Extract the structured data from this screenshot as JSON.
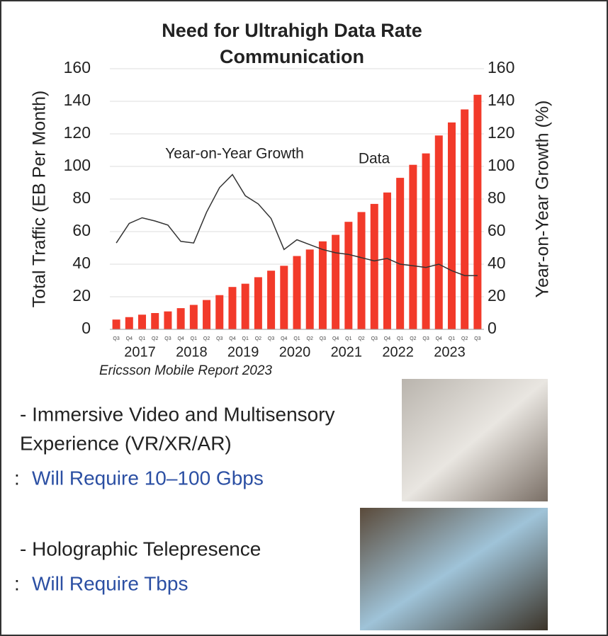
{
  "chart_data": {
    "type": "bar",
    "title": [
      "Need for Ultrahigh Data Rate",
      "Communication"
    ],
    "ylabel": "Total Traffic (EB Per Month)",
    "y2label": "Year-on-Year Growth (%)",
    "categories": [
      "Q3",
      "Q4",
      "Q1",
      "Q2",
      "Q3",
      "Q4",
      "Q1",
      "Q2",
      "Q3",
      "Q4",
      "Q1",
      "Q2",
      "Q3",
      "Q4",
      "Q1",
      "Q2",
      "Q3",
      "Q4",
      "Q1",
      "Q2",
      "Q3",
      "Q4",
      "Q1",
      "Q2",
      "Q3",
      "Q4",
      "Q1",
      "Q2",
      "Q3"
    ],
    "years": [
      "2017",
      "2018",
      "2019",
      "2020",
      "2021",
      "2022",
      "2023"
    ],
    "series": [
      {
        "name": "Data",
        "type": "bar",
        "color": "#f23a2a",
        "values": [
          6,
          7.5,
          9,
          10,
          11,
          13,
          15,
          18,
          21,
          26,
          28,
          32,
          36,
          39,
          45,
          49,
          54,
          58,
          66,
          72,
          77,
          84,
          93,
          101,
          108,
          119,
          127,
          135,
          144
        ]
      },
      {
        "name": "Year-on-Year Growth",
        "type": "line",
        "axis": "y2",
        "color": "#333333",
        "values": [
          53,
          65,
          68.5,
          66.5,
          64,
          54,
          53,
          72,
          87,
          95,
          82,
          77,
          68,
          49,
          55,
          52,
          49,
          47,
          46,
          44,
          42,
          43.5,
          40,
          39,
          38,
          40,
          36,
          33,
          33
        ]
      }
    ],
    "ylim": [
      0,
      160
    ],
    "yticks": [
      0,
      20,
      40,
      60,
      80,
      100,
      120,
      140,
      160
    ],
    "y2lim": [
      0,
      160
    ],
    "y2ticks": [
      0,
      20,
      40,
      60,
      80,
      100,
      120,
      140,
      160
    ],
    "grid": true,
    "source": "Ericsson Mobile Report 2023"
  },
  "bullets": [
    {
      "lines": [
        "- Immersive Video and Multisensory",
        "Experience (VR/XR/AR)"
      ],
      "sep": ":",
      "requirement": "Will Require 10–100 Gbps"
    },
    {
      "lines": [
        "- Holographic Telepresence"
      ],
      "sep": ":",
      "requirement": "Will Require Tbps"
    }
  ]
}
